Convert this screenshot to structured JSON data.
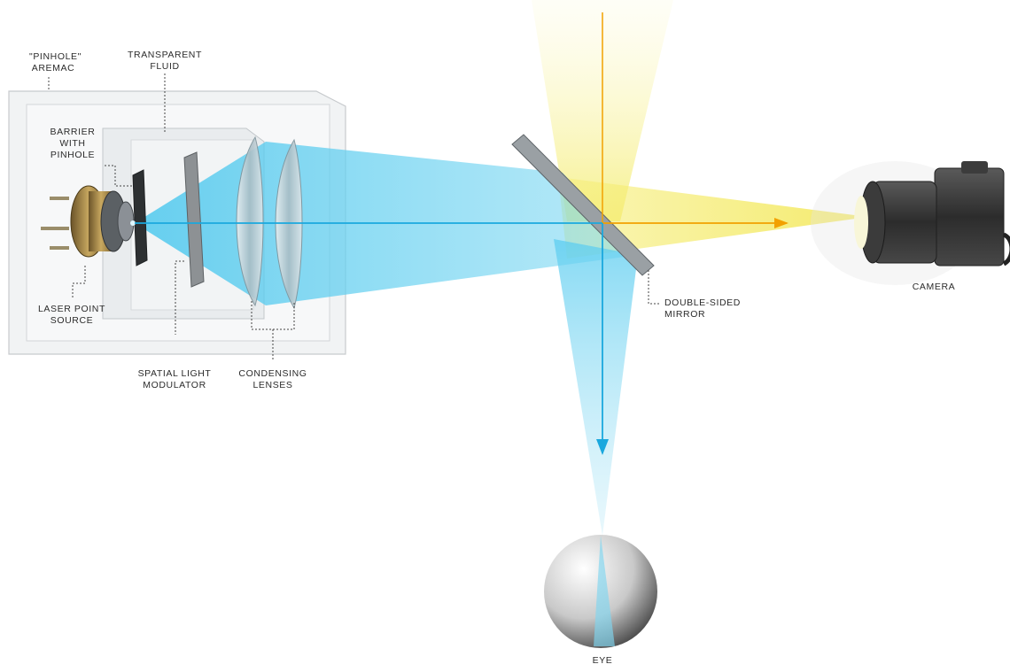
{
  "labels": {
    "pinhole_aremac": [
      "\"PINHOLE\"",
      "AREMAC"
    ],
    "transparent_fluid": [
      "TRANSPARENT",
      "FLUID"
    ],
    "barrier_with_pinhole": [
      "BARRIER",
      "WITH",
      "PINHOLE"
    ],
    "laser_point_source": [
      "LASER POINT",
      "SOURCE"
    ],
    "spatial_light_modulator": [
      "SPATIAL LIGHT",
      "MODULATOR"
    ],
    "condensing_lenses": [
      "CONDENSING",
      "LENSES"
    ],
    "double_sided_mirror": [
      "DOUBLE-SIDED",
      "MIRROR"
    ],
    "camera": [
      "CAMERA"
    ],
    "eye": [
      "EYE"
    ]
  },
  "colors": {
    "cyan_beam": "#29b6e6",
    "cyan_light": "#9fe0f2",
    "yellow_light": "#f7f08a",
    "orange_ray": "#f5a300",
    "box": "#c9ccd0",
    "leader": "#444444"
  },
  "icons": [
    "laser-source-icon",
    "camera-icon",
    "eye-icon",
    "mirror-icon",
    "lens-icon"
  ]
}
